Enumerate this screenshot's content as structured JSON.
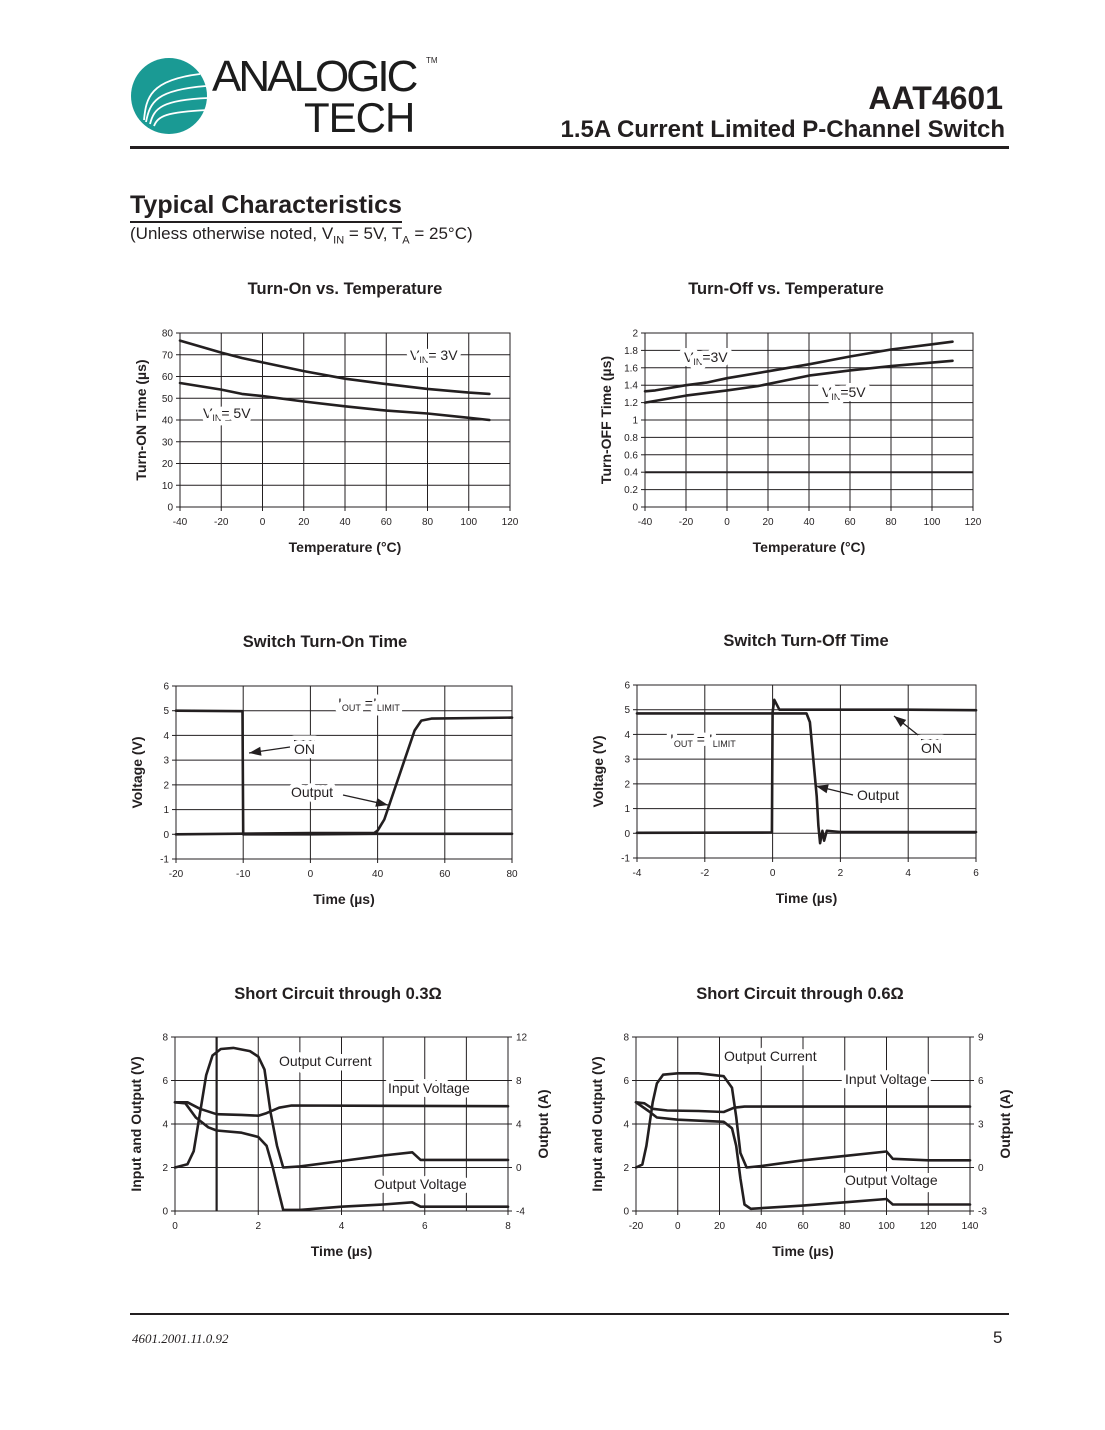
{
  "header": {
    "logo_main": "ANALOGIC",
    "logo_sub": "TECH",
    "logo_tm": "TM",
    "logo_color": "#1a9a94",
    "part_number": "AAT4601",
    "description": "1.5A Current Limited P-Channel Switch"
  },
  "section": {
    "title": "Typical Characteristics",
    "subtitle": [
      {
        "t": "(Unless otherwise noted, V"
      },
      {
        "t": "IN",
        "sub": true
      },
      {
        "t": " = 5V, T"
      },
      {
        "t": "A",
        "sub": true
      },
      {
        "t": " = 25°C)"
      }
    ]
  },
  "footer": {
    "doc_number": "4601.2001.11.0.92",
    "page": "5"
  },
  "chart_data": [
    {
      "type": "line",
      "title": "Turn-On  vs. Temperature",
      "xlabel": "Temperature (°C)",
      "ylabel": "Turn-ON Time (µs)",
      "xlim": [
        -40,
        120
      ],
      "ylim": [
        0,
        80
      ],
      "xticks": [
        -40,
        -20,
        0,
        20,
        40,
        60,
        80,
        100,
        120
      ],
      "yticks": [
        0,
        10,
        20,
        30,
        40,
        50,
        60,
        70,
        80
      ],
      "grid": true,
      "series": [
        {
          "label": [
            {
              "t": "V"
            },
            {
              "t": "IN",
              "sub": true
            },
            {
              "t": "= 3V"
            }
          ],
          "points": [
            [
              -40,
              76.5
            ],
            [
              -20,
              71
            ],
            [
              -10,
              68.5
            ],
            [
              0,
              66.5
            ],
            [
              20,
              62.5
            ],
            [
              40,
              59
            ],
            [
              60,
              56.5
            ],
            [
              80,
              54.3
            ],
            [
              100,
              52.6
            ],
            [
              110,
              52
            ]
          ]
        },
        {
          "label": [
            {
              "t": "V"
            },
            {
              "t": "IN",
              "sub": true
            },
            {
              "t": "= 5V"
            }
          ],
          "points": [
            [
              -40,
              57
            ],
            [
              -20,
              54
            ],
            [
              -10,
              52
            ],
            [
              0,
              51
            ],
            [
              20,
              48.5
            ],
            [
              40,
              46.3
            ],
            [
              60,
              44.3
            ],
            [
              80,
              43
            ],
            [
              100,
              41
            ],
            [
              110,
              40
            ]
          ]
        }
      ]
    },
    {
      "type": "line",
      "title": "Turn-Off vs. Temperature",
      "xlabel": "Temperature (°C)",
      "ylabel": "Turn-OFF Time (µs)",
      "xlim": [
        -40,
        120
      ],
      "ylim": [
        0,
        2
      ],
      "xticks": [
        -40,
        -20,
        0,
        20,
        40,
        60,
        80,
        100,
        120
      ],
      "yticks": [
        0,
        0.2,
        0.4,
        0.6,
        0.8,
        1,
        1.2,
        1.4,
        1.6,
        1.8,
        2
      ],
      "grid": true,
      "series": [
        {
          "label": [
            {
              "t": "V"
            },
            {
              "t": "IN",
              "sub": true
            },
            {
              "t": "=3V"
            }
          ],
          "points": [
            [
              -40,
              1.33
            ],
            [
              -35,
              1.34
            ],
            [
              -20,
              1.4
            ],
            [
              -10,
              1.43
            ],
            [
              0,
              1.48
            ],
            [
              20,
              1.56
            ],
            [
              40,
              1.64
            ],
            [
              60,
              1.73
            ],
            [
              80,
              1.81
            ],
            [
              100,
              1.87
            ],
            [
              110,
              1.9
            ]
          ]
        },
        {
          "label": [
            {
              "t": "V"
            },
            {
              "t": "IN",
              "sub": true
            },
            {
              "t": "=5V"
            }
          ],
          "points": [
            [
              -40,
              1.2
            ],
            [
              -35,
              1.22
            ],
            [
              -20,
              1.28
            ],
            [
              0,
              1.34
            ],
            [
              15,
              1.39
            ],
            [
              40,
              1.51
            ],
            [
              60,
              1.57
            ],
            [
              80,
              1.62
            ],
            [
              100,
              1.66
            ],
            [
              110,
              1.68
            ]
          ]
        }
      ]
    },
    {
      "type": "line",
      "title": "Switch Turn-On Time",
      "xlabel": "Time (µs)",
      "ylabel": "Voltage (V)",
      "xlim": [
        -20,
        80
      ],
      "ylim": [
        -1,
        6
      ],
      "xticks": [
        -20,
        -10,
        0,
        40,
        60,
        80
      ],
      "yticks": [
        -1,
        0,
        1,
        2,
        3,
        4,
        5,
        6
      ],
      "grid": true,
      "annotations": [
        [
          {
            "t": "I"
          },
          {
            "t": "OUT",
            "sub": true
          },
          {
            "t": " =I"
          },
          {
            "t": "LIMIT",
            "sub": true
          }
        ],
        [
          {
            "t": "ON",
            "over": true
          }
        ],
        [
          {
            "t": "Output"
          }
        ]
      ],
      "series": [
        {
          "name": "ON",
          "points": [
            [
              -20,
              5
            ],
            [
              -10.1,
              4.98
            ],
            [
              -10,
              0
            ],
            [
              0,
              0
            ],
            [
              40,
              0.02
            ],
            [
              80,
              0.02
            ]
          ]
        },
        {
          "name": "Output",
          "points": [
            [
              -20,
              0
            ],
            [
              0,
              0.05
            ],
            [
              38,
              0.05
            ],
            [
              40,
              0.15
            ],
            [
              42,
              0.6
            ],
            [
              45,
              1.8
            ],
            [
              48,
              3
            ],
            [
              51,
              4.2
            ],
            [
              53,
              4.6
            ],
            [
              56,
              4.68
            ],
            [
              80,
              4.72
            ]
          ]
        }
      ]
    },
    {
      "type": "line",
      "title": "Switch Turn-Off Time",
      "xlabel": "Time (µs)",
      "ylabel": "Voltage (V)",
      "xlim": [
        -4,
        6
      ],
      "ylim": [
        -1,
        6
      ],
      "xticks": [
        -4,
        -2,
        0,
        2,
        4,
        6
      ],
      "yticks": [
        -1,
        0,
        1,
        2,
        3,
        4,
        5,
        6
      ],
      "grid": true,
      "annotations": [
        [
          {
            "t": "I"
          },
          {
            "t": "OUT",
            "sub": true
          },
          {
            "t": " = I"
          },
          {
            "t": "LIMIT",
            "sub": true
          }
        ],
        [
          {
            "t": "ON",
            "over": true
          }
        ],
        [
          {
            "t": "Output"
          }
        ]
      ],
      "series": [
        {
          "name": "ON",
          "points": [
            [
              -4,
              0.02
            ],
            [
              -0.02,
              0.03
            ],
            [
              0,
              4.9
            ],
            [
              0.05,
              5.4
            ],
            [
              0.2,
              5
            ],
            [
              1,
              5
            ],
            [
              4,
              5
            ],
            [
              6,
              4.98
            ]
          ]
        },
        {
          "name": "Output",
          "points": [
            [
              -4,
              4.85
            ],
            [
              1,
              4.85
            ],
            [
              1.1,
              4.5
            ],
            [
              1.2,
              3
            ],
            [
              1.3,
              1.5
            ],
            [
              1.35,
              0.3
            ],
            [
              1.4,
              -0.4
            ],
            [
              1.47,
              0.1
            ],
            [
              1.52,
              -0.3
            ],
            [
              1.6,
              0.1
            ],
            [
              2,
              0.05
            ],
            [
              6,
              0.05
            ]
          ]
        }
      ]
    },
    {
      "type": "line",
      "title": "Short Circuit through 0.3Ω",
      "xlabel": "Time (µs)",
      "ylabel": "Input and Output  (V)",
      "ylabel_right": "Output (A)",
      "xlim": [
        0,
        8
      ],
      "ylim": [
        0,
        8
      ],
      "ylim_right": [
        -4,
        12
      ],
      "xticks": [
        0,
        2,
        4,
        6,
        8
      ],
      "x_gridlines": [
        1,
        2,
        3,
        4,
        5,
        6,
        7
      ],
      "yticks": [
        0,
        2,
        4,
        6,
        8
      ],
      "yticks_right": [
        -4,
        0,
        4,
        8,
        12
      ],
      "grid": true,
      "series": [
        {
          "label": [
            {
              "t": "Output Current"
            }
          ],
          "axis": "right",
          "points": [
            [
              0,
              0
            ],
            [
              0.3,
              0.3
            ],
            [
              0.45,
              1.5
            ],
            [
              0.6,
              5
            ],
            [
              0.75,
              8.5
            ],
            [
              0.9,
              10.3
            ],
            [
              1.1,
              10.9
            ],
            [
              1.4,
              11
            ],
            [
              1.8,
              10.7
            ],
            [
              2,
              10.2
            ],
            [
              2.15,
              9
            ],
            [
              2.3,
              5
            ],
            [
              2.45,
              2
            ],
            [
              2.6,
              0
            ],
            [
              3,
              0.1
            ],
            [
              4,
              0.6
            ],
            [
              5,
              1.1
            ],
            [
              5.7,
              1.4
            ],
            [
              5.9,
              0.7
            ],
            [
              6.5,
              0.7
            ],
            [
              8,
              0.7
            ]
          ]
        },
        {
          "label": [
            {
              "t": "Input Voltage"
            }
          ],
          "points": [
            [
              0,
              5
            ],
            [
              0.3,
              5
            ],
            [
              0.6,
              4.7
            ],
            [
              1,
              4.45
            ],
            [
              1.6,
              4.42
            ],
            [
              2,
              4.38
            ],
            [
              2.2,
              4.5
            ],
            [
              2.5,
              4.75
            ],
            [
              2.8,
              4.85
            ],
            [
              8,
              4.82
            ]
          ]
        },
        {
          "label": [
            {
              "t": "Output Voltage"
            }
          ],
          "points": [
            [
              0,
              5
            ],
            [
              0.25,
              4.95
            ],
            [
              0.5,
              4.3
            ],
            [
              0.8,
              3.85
            ],
            [
              1,
              3.7
            ],
            [
              1.6,
              3.6
            ],
            [
              2,
              3.4
            ],
            [
              2.2,
              3
            ],
            [
              2.35,
              2
            ],
            [
              2.5,
              0.8
            ],
            [
              2.6,
              0.05
            ],
            [
              3,
              0.05
            ],
            [
              4,
              0.2
            ],
            [
              5,
              0.3
            ],
            [
              5.7,
              0.4
            ],
            [
              5.9,
              0.2
            ],
            [
              8,
              0.2
            ]
          ]
        }
      ]
    },
    {
      "type": "line",
      "title": "Short Circuit through 0.6Ω",
      "xlabel": "Time (µs)",
      "ylabel": "Input and Output  (V)",
      "ylabel_right": "Output (A)",
      "xlim": [
        -20,
        140
      ],
      "ylim": [
        0,
        8
      ],
      "ylim_right": [
        -3,
        9
      ],
      "xticks": [
        -20,
        0,
        20,
        40,
        60,
        80,
        100,
        120,
        140
      ],
      "yticks": [
        0,
        2,
        4,
        6,
        8
      ],
      "yticks_right": [
        -3,
        0,
        3,
        6,
        9
      ],
      "grid": true,
      "series": [
        {
          "label": [
            {
              "t": "Output Current"
            }
          ],
          "axis": "right",
          "points": [
            [
              -20,
              0
            ],
            [
              -17,
              0.2
            ],
            [
              -15,
              1.5
            ],
            [
              -12,
              4.5
            ],
            [
              -10,
              5.8
            ],
            [
              -7,
              6.4
            ],
            [
              0,
              6.5
            ],
            [
              10,
              6.5
            ],
            [
              22,
              6.3
            ],
            [
              26,
              5.5
            ],
            [
              28,
              3.5
            ],
            [
              30,
              1
            ],
            [
              33,
              0
            ],
            [
              40,
              0.1
            ],
            [
              60,
              0.5
            ],
            [
              80,
              0.8
            ],
            [
              100,
              1.1
            ],
            [
              103,
              0.6
            ],
            [
              120,
              0.5
            ],
            [
              140,
              0.5
            ]
          ]
        },
        {
          "label": [
            {
              "t": "Input Voltage"
            }
          ],
          "points": [
            [
              -20,
              5
            ],
            [
              -16,
              4.95
            ],
            [
              -12,
              4.7
            ],
            [
              -5,
              4.62
            ],
            [
              10,
              4.6
            ],
            [
              22,
              4.55
            ],
            [
              27,
              4.75
            ],
            [
              32,
              4.8
            ],
            [
              140,
              4.8
            ]
          ]
        },
        {
          "label": [
            {
              "t": "Output Voltage"
            }
          ],
          "points": [
            [
              -20,
              5
            ],
            [
              -14,
              4.6
            ],
            [
              -10,
              4.3
            ],
            [
              0,
              4.2
            ],
            [
              22,
              4.1
            ],
            [
              26,
              3.8
            ],
            [
              28,
              3
            ],
            [
              30,
              1.5
            ],
            [
              32,
              0.3
            ],
            [
              35,
              0.1
            ],
            [
              60,
              0.25
            ],
            [
              80,
              0.4
            ],
            [
              100,
              0.55
            ],
            [
              103,
              0.3
            ],
            [
              120,
              0.3
            ],
            [
              140,
              0.3
            ]
          ]
        }
      ]
    }
  ]
}
